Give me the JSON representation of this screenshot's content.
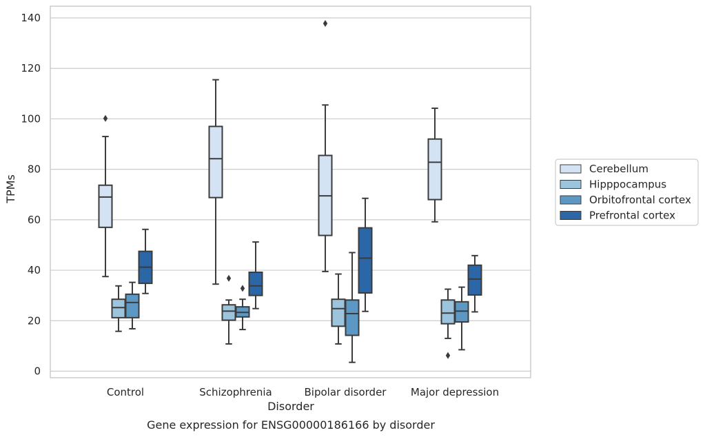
{
  "chart_data": {
    "type": "boxplot",
    "title": "Gene expression for ENSG00000186166 by disorder",
    "xlabel": "Disorder",
    "ylabel": "TPMs",
    "ylim": [
      -2.5,
      145
    ],
    "yticks": [
      0,
      20,
      40,
      60,
      80,
      100,
      120,
      140
    ],
    "grid": "horizontal",
    "legend_placement": "right",
    "categories": [
      "Control",
      "Schizophrenia",
      "Bipolar disorder",
      "Major depression"
    ],
    "series": [
      {
        "name": "Cerebellum",
        "color": "#d4e3f3",
        "boxes": [
          {
            "whislo": 37.5,
            "q1": 57,
            "med": 69,
            "q3": 73.7,
            "whishi": 93,
            "fliers": [
              100.2
            ]
          },
          {
            "whislo": 34.5,
            "q1": 68.8,
            "med": 84.2,
            "q3": 97,
            "whishi": 115.5,
            "fliers": []
          },
          {
            "whislo": 39.5,
            "q1": 53.8,
            "med": 69.5,
            "q3": 85.5,
            "whishi": 105.5,
            "fliers": [
              137.8
            ]
          },
          {
            "whislo": 59.2,
            "q1": 68,
            "med": 82.8,
            "q3": 92,
            "whishi": 104.2,
            "fliers": []
          }
        ]
      },
      {
        "name": "Hipppocampus",
        "color": "#9dc4dd",
        "boxes": [
          {
            "whislo": 15.8,
            "q1": 21.2,
            "med": 25.2,
            "q3": 28.5,
            "whishi": 33.8,
            "fliers": []
          },
          {
            "whislo": 10.8,
            "q1": 20.2,
            "med": 23.8,
            "q3": 26.3,
            "whishi": 28.2,
            "fliers": [
              36.8
            ]
          },
          {
            "whislo": 10.8,
            "q1": 17.8,
            "med": 24.8,
            "q3": 28.5,
            "whishi": 38.5,
            "fliers": []
          },
          {
            "whislo": 13,
            "q1": 18.8,
            "med": 23,
            "q3": 28.2,
            "whishi": 32.5,
            "fliers": [
              6.2
            ]
          }
        ]
      },
      {
        "name": "Orbitofrontal cortex",
        "color": "#5d98c5",
        "boxes": [
          {
            "whislo": 16.8,
            "q1": 21.2,
            "med": 27.2,
            "q3": 30.5,
            "whishi": 35.2,
            "fliers": []
          },
          {
            "whislo": 16.5,
            "q1": 21.5,
            "med": 23.3,
            "q3": 25.5,
            "whishi": 28.5,
            "fliers": [
              32.8
            ]
          },
          {
            "whislo": 3.5,
            "q1": 14.2,
            "med": 22.8,
            "q3": 28.2,
            "whishi": 47,
            "fliers": []
          },
          {
            "whislo": 8.5,
            "q1": 19.5,
            "med": 23.8,
            "q3": 27.5,
            "whishi": 33.3,
            "fliers": []
          }
        ]
      },
      {
        "name": "Prefrontal cortex",
        "color": "#2b66a6",
        "boxes": [
          {
            "whislo": 30.8,
            "q1": 34.8,
            "med": 41.2,
            "q3": 47.5,
            "whishi": 56.2,
            "fliers": []
          },
          {
            "whislo": 24.8,
            "q1": 30,
            "med": 33.8,
            "q3": 39.2,
            "whishi": 51.2,
            "fliers": []
          },
          {
            "whislo": 23.7,
            "q1": 31,
            "med": 44.8,
            "q3": 56.8,
            "whishi": 68.5,
            "fliers": []
          },
          {
            "whislo": 23.5,
            "q1": 30.2,
            "med": 36.5,
            "q3": 42,
            "whishi": 45.8,
            "fliers": []
          }
        ]
      }
    ]
  }
}
